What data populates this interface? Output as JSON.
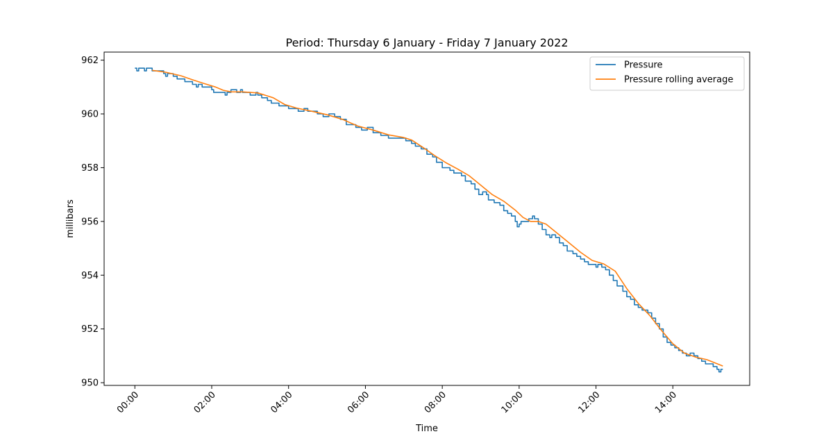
{
  "chart_data": {
    "type": "line",
    "title": "Period: Thursday 6 January - Friday 7 January 2022",
    "xlabel": "Time",
    "ylabel": "millibars",
    "x_unit": "hours from 00:00",
    "xlim": [
      -0.8,
      16.0
    ],
    "ylim": [
      949.9,
      962.3
    ],
    "xticks": [
      {
        "value": 0,
        "label": "00:00"
      },
      {
        "value": 2,
        "label": "02:00"
      },
      {
        "value": 4,
        "label": "04:00"
      },
      {
        "value": 6,
        "label": "06:00"
      },
      {
        "value": 8,
        "label": "08:00"
      },
      {
        "value": 10,
        "label": "10:00"
      },
      {
        "value": 12,
        "label": "12:00"
      },
      {
        "value": 14,
        "label": "14:00"
      }
    ],
    "yticks": [
      {
        "value": 950,
        "label": "950"
      },
      {
        "value": 952,
        "label": "952"
      },
      {
        "value": 954,
        "label": "954"
      },
      {
        "value": 956,
        "label": "956"
      },
      {
        "value": 958,
        "label": "958"
      },
      {
        "value": 960,
        "label": "960"
      },
      {
        "value": 962,
        "label": "962"
      }
    ],
    "grid": false,
    "legend_position": "top-right",
    "series": [
      {
        "name": "Pressure",
        "color": "#1f77b4",
        "style": "step",
        "points": [
          [
            0.0,
            961.7
          ],
          [
            0.05,
            961.6
          ],
          [
            0.1,
            961.7
          ],
          [
            0.2,
            961.7
          ],
          [
            0.25,
            961.6
          ],
          [
            0.3,
            961.7
          ],
          [
            0.4,
            961.7
          ],
          [
            0.45,
            961.6
          ],
          [
            0.6,
            961.6
          ],
          [
            0.75,
            961.5
          ],
          [
            0.8,
            961.4
          ],
          [
            0.85,
            961.5
          ],
          [
            1.0,
            961.4
          ],
          [
            1.1,
            961.3
          ],
          [
            1.2,
            961.3
          ],
          [
            1.3,
            961.2
          ],
          [
            1.45,
            961.2
          ],
          [
            1.5,
            961.1
          ],
          [
            1.6,
            961.0
          ],
          [
            1.65,
            961.1
          ],
          [
            1.75,
            961.0
          ],
          [
            1.9,
            961.0
          ],
          [
            2.0,
            960.9
          ],
          [
            2.05,
            960.8
          ],
          [
            2.2,
            960.8
          ],
          [
            2.3,
            960.8
          ],
          [
            2.35,
            960.7
          ],
          [
            2.4,
            960.8
          ],
          [
            2.5,
            960.9
          ],
          [
            2.6,
            960.9
          ],
          [
            2.65,
            960.8
          ],
          [
            2.7,
            960.8
          ],
          [
            2.75,
            960.9
          ],
          [
            2.8,
            960.8
          ],
          [
            2.9,
            960.8
          ],
          [
            3.0,
            960.7
          ],
          [
            3.1,
            960.7
          ],
          [
            3.15,
            960.8
          ],
          [
            3.2,
            960.7
          ],
          [
            3.3,
            960.6
          ],
          [
            3.45,
            960.5
          ],
          [
            3.55,
            960.4
          ],
          [
            3.7,
            960.4
          ],
          [
            3.75,
            960.3
          ],
          [
            4.0,
            960.2
          ],
          [
            4.25,
            960.1
          ],
          [
            4.4,
            960.2
          ],
          [
            4.5,
            960.1
          ],
          [
            4.75,
            960.0
          ],
          [
            4.9,
            959.9
          ],
          [
            5.0,
            959.9
          ],
          [
            5.05,
            960.0
          ],
          [
            5.2,
            959.9
          ],
          [
            5.35,
            959.8
          ],
          [
            5.5,
            959.6
          ],
          [
            5.6,
            959.6
          ],
          [
            5.75,
            959.5
          ],
          [
            5.9,
            959.4
          ],
          [
            6.0,
            959.4
          ],
          [
            6.05,
            959.5
          ],
          [
            6.2,
            959.3
          ],
          [
            6.4,
            959.2
          ],
          [
            6.6,
            959.1
          ],
          [
            6.75,
            959.1
          ],
          [
            6.85,
            959.1
          ],
          [
            7.0,
            959.1
          ],
          [
            7.05,
            959.0
          ],
          [
            7.1,
            959.0
          ],
          [
            7.2,
            958.9
          ],
          [
            7.3,
            958.8
          ],
          [
            7.45,
            958.7
          ],
          [
            7.6,
            958.5
          ],
          [
            7.75,
            958.4
          ],
          [
            7.85,
            958.2
          ],
          [
            8.0,
            958.0
          ],
          [
            8.1,
            958.0
          ],
          [
            8.2,
            957.9
          ],
          [
            8.3,
            957.8
          ],
          [
            8.5,
            957.7
          ],
          [
            8.6,
            957.5
          ],
          [
            8.75,
            957.4
          ],
          [
            8.85,
            957.2
          ],
          [
            8.95,
            957.0
          ],
          [
            9.05,
            957.1
          ],
          [
            9.15,
            957.0
          ],
          [
            9.2,
            956.8
          ],
          [
            9.35,
            956.7
          ],
          [
            9.5,
            956.6
          ],
          [
            9.6,
            956.4
          ],
          [
            9.7,
            956.3
          ],
          [
            9.8,
            956.2
          ],
          [
            9.9,
            956.0
          ],
          [
            9.95,
            955.8
          ],
          [
            10.0,
            955.9
          ],
          [
            10.05,
            956.0
          ],
          [
            10.15,
            956.0
          ],
          [
            10.25,
            956.1
          ],
          [
            10.35,
            956.2
          ],
          [
            10.4,
            956.1
          ],
          [
            10.5,
            955.9
          ],
          [
            10.6,
            955.7
          ],
          [
            10.7,
            955.5
          ],
          [
            10.8,
            955.4
          ],
          [
            10.85,
            955.5
          ],
          [
            10.95,
            955.4
          ],
          [
            11.05,
            955.2
          ],
          [
            11.15,
            955.1
          ],
          [
            11.25,
            954.9
          ],
          [
            11.4,
            954.8
          ],
          [
            11.5,
            954.7
          ],
          [
            11.6,
            954.6
          ],
          [
            11.7,
            954.5
          ],
          [
            11.8,
            954.4
          ],
          [
            11.9,
            954.4
          ],
          [
            12.0,
            954.3
          ],
          [
            12.05,
            954.4
          ],
          [
            12.15,
            954.3
          ],
          [
            12.25,
            954.2
          ],
          [
            12.35,
            954.0
          ],
          [
            12.45,
            953.8
          ],
          [
            12.55,
            953.6
          ],
          [
            12.7,
            953.4
          ],
          [
            12.8,
            953.2
          ],
          [
            12.9,
            953.1
          ],
          [
            13.0,
            952.9
          ],
          [
            13.1,
            952.8
          ],
          [
            13.2,
            952.7
          ],
          [
            13.35,
            952.6
          ],
          [
            13.45,
            952.4
          ],
          [
            13.55,
            952.2
          ],
          [
            13.65,
            952.0
          ],
          [
            13.75,
            951.7
          ],
          [
            13.85,
            951.5
          ],
          [
            13.95,
            951.4
          ],
          [
            14.05,
            951.3
          ],
          [
            14.15,
            951.2
          ],
          [
            14.25,
            951.1
          ],
          [
            14.35,
            951.0
          ],
          [
            14.45,
            951.1
          ],
          [
            14.55,
            951.0
          ],
          [
            14.65,
            950.9
          ],
          [
            14.75,
            950.8
          ],
          [
            14.85,
            950.7
          ],
          [
            14.95,
            950.7
          ],
          [
            15.05,
            950.6
          ],
          [
            15.15,
            950.5
          ],
          [
            15.2,
            950.4
          ],
          [
            15.25,
            950.5
          ],
          [
            15.3,
            950.5
          ]
        ]
      },
      {
        "name": "Pressure rolling average",
        "color": "#ff7f0e",
        "style": "line",
        "points": [
          [
            0.45,
            961.62
          ],
          [
            0.8,
            961.55
          ],
          [
            1.2,
            961.42
          ],
          [
            1.5,
            961.27
          ],
          [
            1.8,
            961.13
          ],
          [
            2.1,
            961.0
          ],
          [
            2.3,
            960.88
          ],
          [
            2.5,
            960.82
          ],
          [
            2.8,
            960.82
          ],
          [
            3.2,
            960.78
          ],
          [
            3.6,
            960.6
          ],
          [
            3.9,
            960.35
          ],
          [
            4.2,
            960.22
          ],
          [
            4.6,
            960.1
          ],
          [
            5.0,
            959.97
          ],
          [
            5.4,
            959.8
          ],
          [
            5.8,
            959.55
          ],
          [
            6.2,
            959.4
          ],
          [
            6.6,
            959.22
          ],
          [
            7.0,
            959.12
          ],
          [
            7.2,
            959.03
          ],
          [
            7.5,
            958.75
          ],
          [
            7.8,
            958.45
          ],
          [
            8.1,
            958.18
          ],
          [
            8.4,
            957.95
          ],
          [
            8.7,
            957.7
          ],
          [
            9.0,
            957.35
          ],
          [
            9.3,
            957.0
          ],
          [
            9.6,
            956.75
          ],
          [
            9.9,
            956.42
          ],
          [
            10.1,
            956.15
          ],
          [
            10.3,
            956.0
          ],
          [
            10.5,
            956.0
          ],
          [
            10.7,
            955.9
          ],
          [
            11.0,
            955.55
          ],
          [
            11.3,
            955.2
          ],
          [
            11.6,
            954.85
          ],
          [
            11.9,
            954.55
          ],
          [
            12.2,
            954.42
          ],
          [
            12.5,
            954.15
          ],
          [
            12.8,
            953.5
          ],
          [
            13.1,
            952.95
          ],
          [
            13.4,
            952.5
          ],
          [
            13.7,
            951.95
          ],
          [
            14.0,
            951.45
          ],
          [
            14.3,
            951.1
          ],
          [
            14.6,
            950.95
          ],
          [
            14.9,
            950.85
          ],
          [
            15.3,
            950.62
          ]
        ]
      }
    ]
  }
}
